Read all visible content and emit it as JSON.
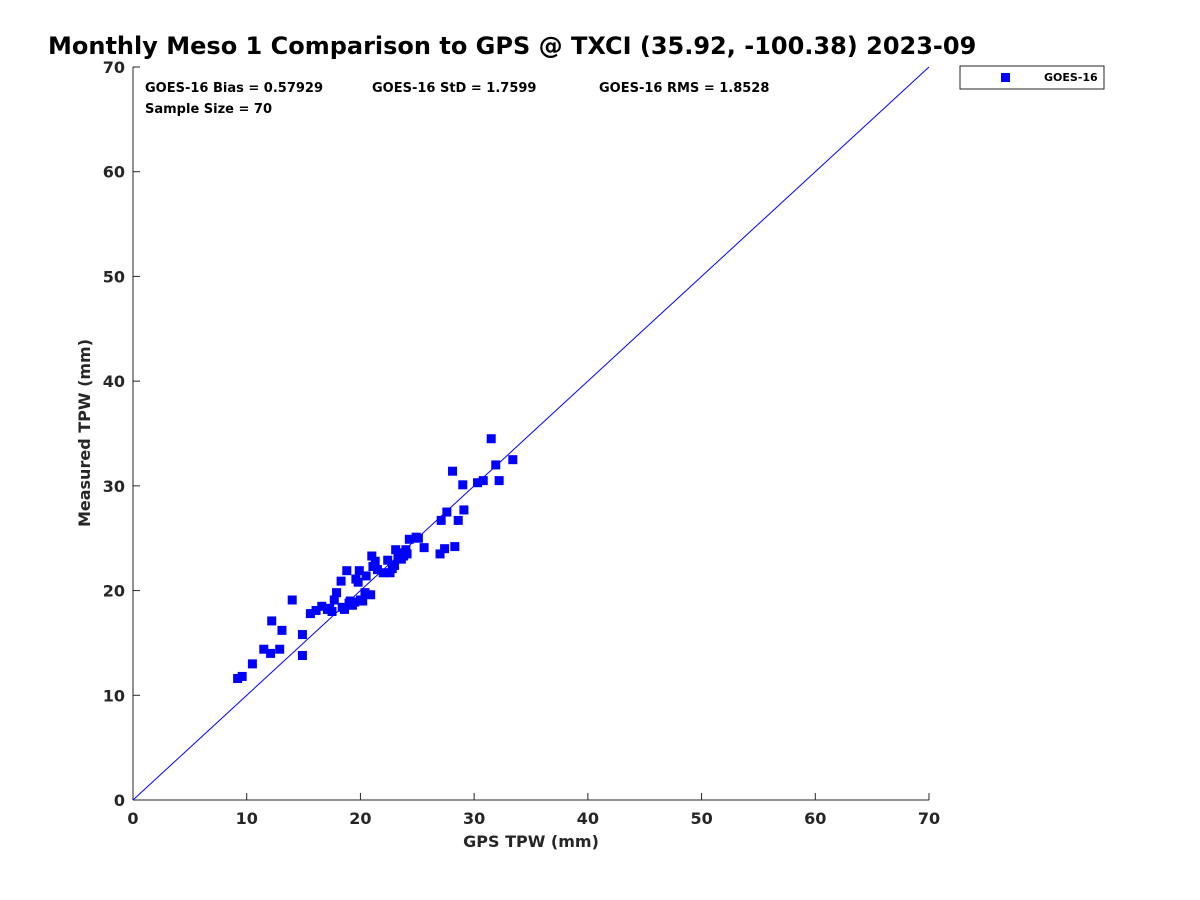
{
  "chart_data": {
    "type": "scatter",
    "title": "Monthly Meso 1 Comparison to GPS @ TXCI (35.92, -100.38) 2023-09",
    "xlabel": "GPS TPW (mm)",
    "ylabel": "Measured TPW (mm)",
    "xlim": [
      0,
      70
    ],
    "ylim": [
      0,
      70
    ],
    "xticks": [
      "0",
      "10",
      "20",
      "30",
      "40",
      "50",
      "60",
      "70"
    ],
    "yticks": [
      "0",
      "10",
      "20",
      "30",
      "40",
      "50",
      "60",
      "70"
    ],
    "grid": false,
    "legend_position": "outside-top-right",
    "reference_line": {
      "x": [
        0,
        70
      ],
      "y": [
        0,
        70
      ],
      "color": "#0000ff"
    },
    "annotations": {
      "bias": "GOES-16 Bias = 0.57929",
      "std": "GOES-16 StD = 1.7599",
      "rms": "GOES-16 RMS = 1.8528",
      "sample": "Sample Size = 70"
    },
    "series": [
      {
        "name": "GOES-16",
        "color": "#0000ff",
        "marker": "square",
        "points": [
          [
            9.2,
            11.6
          ],
          [
            9.6,
            11.8
          ],
          [
            10.5,
            13.0
          ],
          [
            11.5,
            14.4
          ],
          [
            12.1,
            14.0
          ],
          [
            12.2,
            17.1
          ],
          [
            12.9,
            14.4
          ],
          [
            13.1,
            16.2
          ],
          [
            14.0,
            19.1
          ],
          [
            14.9,
            15.8
          ],
          [
            14.9,
            13.8
          ],
          [
            15.6,
            17.8
          ],
          [
            16.1,
            18.1
          ],
          [
            16.6,
            18.5
          ],
          [
            17.1,
            18.2
          ],
          [
            17.5,
            18.0
          ],
          [
            17.7,
            19.1
          ],
          [
            17.9,
            19.8
          ],
          [
            18.3,
            20.9
          ],
          [
            18.4,
            18.4
          ],
          [
            18.6,
            18.2
          ],
          [
            18.8,
            21.9
          ],
          [
            19.1,
            19.0
          ],
          [
            19.3,
            18.6
          ],
          [
            19.5,
            18.9
          ],
          [
            19.6,
            21.1
          ],
          [
            19.8,
            20.8
          ],
          [
            19.9,
            21.9
          ],
          [
            20.2,
            19.0
          ],
          [
            20.4,
            19.8
          ],
          [
            20.5,
            21.4
          ],
          [
            20.9,
            19.6
          ],
          [
            21.0,
            23.3
          ],
          [
            21.1,
            22.3
          ],
          [
            21.3,
            22.8
          ],
          [
            22.0,
            21.7
          ],
          [
            22.4,
            22.9
          ],
          [
            22.6,
            21.7
          ],
          [
            23.0,
            22.4
          ],
          [
            23.1,
            23.9
          ],
          [
            23.3,
            23.2
          ],
          [
            23.5,
            23.6
          ],
          [
            23.8,
            23.3
          ],
          [
            24.0,
            23.9
          ],
          [
            24.1,
            23.5
          ],
          [
            24.3,
            24.9
          ],
          [
            24.9,
            25.1
          ],
          [
            25.6,
            24.1
          ],
          [
            27.0,
            23.5
          ],
          [
            27.1,
            26.7
          ],
          [
            27.4,
            24.0
          ],
          [
            27.6,
            27.5
          ],
          [
            28.1,
            31.4
          ],
          [
            28.3,
            24.2
          ],
          [
            28.6,
            26.7
          ],
          [
            29.0,
            30.1
          ],
          [
            29.1,
            27.7
          ],
          [
            30.3,
            30.3
          ],
          [
            30.8,
            30.5
          ],
          [
            31.5,
            34.5
          ],
          [
            31.9,
            32.0
          ],
          [
            32.2,
            30.5
          ],
          [
            33.4,
            32.5
          ],
          [
            21.5,
            22.0
          ],
          [
            23.6,
            23.0
          ],
          [
            19.0,
            18.8
          ],
          [
            22.8,
            22.1
          ],
          [
            25.1,
            25.0
          ],
          [
            17.3,
            18.3
          ],
          [
            20.0,
            19.1
          ]
        ]
      }
    ]
  }
}
